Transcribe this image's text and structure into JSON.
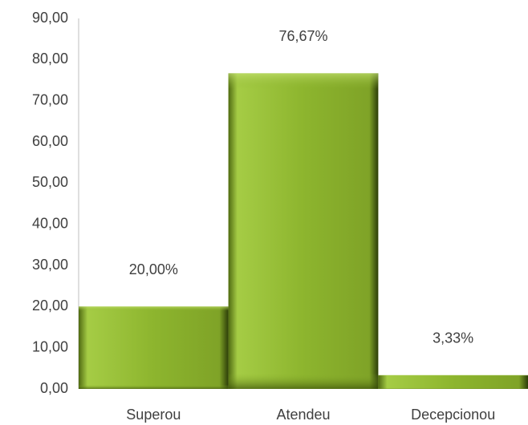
{
  "chart_data": {
    "type": "bar",
    "categories": [
      "Superou",
      "Atendeu",
      "Decepcionou"
    ],
    "values": [
      20.0,
      76.67,
      3.33
    ],
    "value_labels": [
      "20,00%",
      "76,67%",
      "3,33%"
    ],
    "color": "#8db52e",
    "ylim": [
      0,
      90
    ],
    "yticks": [
      {
        "value": 0,
        "label": "0,00"
      },
      {
        "value": 10,
        "label": "10,00"
      },
      {
        "value": 20,
        "label": "20,00"
      },
      {
        "value": 30,
        "label": "30,00"
      },
      {
        "value": 40,
        "label": "40,00"
      },
      {
        "value": 50,
        "label": "50,00"
      },
      {
        "value": 60,
        "label": "60,00"
      },
      {
        "value": 70,
        "label": "70,00"
      },
      {
        "value": 80,
        "label": "80,00"
      },
      {
        "value": 90,
        "label": "90,00"
      }
    ],
    "grid": false
  }
}
